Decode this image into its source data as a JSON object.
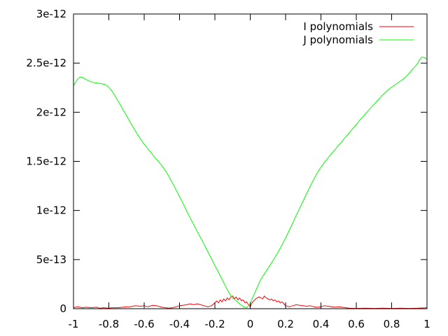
{
  "chart_data": {
    "type": "line",
    "xlim": [
      -1,
      1
    ],
    "ylim": [
      0,
      3e-12
    ],
    "x_ticks": [
      -1,
      -0.8,
      -0.6,
      -0.4,
      -0.2,
      0,
      0.2,
      0.4,
      0.6,
      0.8,
      1
    ],
    "x_tick_labels": [
      "-1",
      "-0.8",
      "-0.6",
      "-0.4",
      "-0.2",
      "0",
      "0.2",
      "0.4",
      "0.6",
      "0.8",
      "1"
    ],
    "y_ticks": [
      0,
      5e-13,
      1e-12,
      1.5e-12,
      2e-12,
      2.5e-12,
      3e-12
    ],
    "y_tick_labels": [
      "0",
      "5e-13",
      "1e-12",
      "1.5e-12",
      "2e-12",
      "2.5e-12",
      "3e-12"
    ],
    "grid": false,
    "legend_position": "top-right",
    "series": [
      {
        "name": "I polynomials",
        "color": "#ff0000",
        "x": [
          -1,
          -0.98,
          -0.95,
          -0.93,
          -0.9,
          -0.87,
          -0.85,
          -0.83,
          -0.8,
          -0.78,
          -0.75,
          -0.72,
          -0.7,
          -0.68,
          -0.65,
          -0.62,
          -0.6,
          -0.58,
          -0.55,
          -0.53,
          -0.5,
          -0.48,
          -0.46,
          -0.44,
          -0.42,
          -0.4,
          -0.38,
          -0.36,
          -0.34,
          -0.32,
          -0.3,
          -0.28,
          -0.26,
          -0.24,
          -0.22,
          -0.2,
          -0.19,
          -0.18,
          -0.17,
          -0.16,
          -0.15,
          -0.14,
          -0.13,
          -0.12,
          -0.11,
          -0.1,
          -0.09,
          -0.08,
          -0.07,
          -0.06,
          -0.05,
          -0.04,
          -0.03,
          -0.02,
          -0.01,
          0,
          0.01,
          0.02,
          0.03,
          0.04,
          0.05,
          0.06,
          0.07,
          0.08,
          0.09,
          0.1,
          0.11,
          0.12,
          0.13,
          0.14,
          0.15,
          0.16,
          0.17,
          0.18,
          0.19,
          0.2,
          0.22,
          0.24,
          0.26,
          0.28,
          0.3,
          0.32,
          0.34,
          0.36,
          0.38,
          0.4,
          0.42,
          0.44,
          0.46,
          0.48,
          0.5,
          0.52,
          0.54,
          0.56,
          0.6,
          0.65,
          0.7,
          0.75,
          0.8,
          0.85,
          0.9,
          0.95,
          1
        ],
        "y": [
          1e-14,
          2e-14,
          1e-14,
          1.5e-14,
          1e-14,
          1.5e-14,
          5e-15,
          1e-14,
          5e-15,
          1e-14,
          1e-14,
          1.5e-14,
          2e-14,
          2e-14,
          3e-14,
          2.5e-14,
          3e-14,
          2e-14,
          3.5e-14,
          3e-14,
          1.5e-14,
          1e-14,
          5e-15,
          1e-14,
          2e-14,
          3e-14,
          3.5e-14,
          4e-14,
          5e-14,
          4e-14,
          5e-14,
          4e-14,
          3e-14,
          2e-14,
          3e-14,
          6e-14,
          8e-14,
          6e-14,
          9e-14,
          7e-14,
          1e-13,
          8e-14,
          1.1e-13,
          9e-14,
          1.2e-13,
          1.3e-13,
          1e-13,
          1.2e-13,
          9e-14,
          1.1e-13,
          8e-14,
          9e-14,
          6e-14,
          7e-14,
          4e-14,
          2e-14,
          6e-14,
          8e-14,
          1e-13,
          1.1e-13,
          1.2e-13,
          1.1e-13,
          1e-13,
          1.3e-13,
          1.1e-13,
          1e-13,
          9e-14,
          1e-13,
          8e-14,
          9e-14,
          7e-14,
          8e-14,
          6e-14,
          7e-14,
          5e-14,
          3e-14,
          2e-14,
          3e-14,
          4e-14,
          3.5e-14,
          3e-14,
          2.5e-14,
          3e-14,
          2e-14,
          1.5e-14,
          2e-14,
          3e-14,
          2.5e-14,
          2e-14,
          1.5e-14,
          2e-14,
          1.5e-14,
          1e-14,
          5e-15,
          3e-15,
          5e-15,
          3e-15,
          5e-15,
          3e-15,
          5e-15,
          3e-15,
          5e-15,
          1e-14
        ]
      },
      {
        "name": "J polynomials",
        "color": "#00ff00",
        "x": [
          -1,
          -0.99,
          -0.98,
          -0.97,
          -0.96,
          -0.95,
          -0.94,
          -0.93,
          -0.92,
          -0.9,
          -0.88,
          -0.86,
          -0.84,
          -0.82,
          -0.8,
          -0.78,
          -0.76,
          -0.74,
          -0.72,
          -0.7,
          -0.68,
          -0.66,
          -0.64,
          -0.62,
          -0.6,
          -0.58,
          -0.56,
          -0.54,
          -0.52,
          -0.5,
          -0.48,
          -0.46,
          -0.44,
          -0.42,
          -0.4,
          -0.38,
          -0.36,
          -0.34,
          -0.32,
          -0.3,
          -0.28,
          -0.26,
          -0.24,
          -0.22,
          -0.2,
          -0.18,
          -0.16,
          -0.14,
          -0.12,
          -0.1,
          -0.08,
          -0.06,
          -0.04,
          -0.02,
          0,
          0.01,
          0.02,
          0.03,
          0.04,
          0.05,
          0.06,
          0.08,
          0.1,
          0.12,
          0.14,
          0.16,
          0.18,
          0.2,
          0.22,
          0.24,
          0.26,
          0.28,
          0.3,
          0.32,
          0.34,
          0.36,
          0.38,
          0.4,
          0.42,
          0.44,
          0.46,
          0.48,
          0.5,
          0.52,
          0.54,
          0.56,
          0.58,
          0.6,
          0.62,
          0.64,
          0.66,
          0.68,
          0.7,
          0.72,
          0.74,
          0.76,
          0.78,
          0.8,
          0.82,
          0.84,
          0.86,
          0.88,
          0.9,
          0.92,
          0.94,
          0.95,
          0.96,
          0.97,
          0.98,
          0.99,
          1
        ],
        "y": [
          2.27e-12,
          2.3e-12,
          2.33e-12,
          2.35e-12,
          2.36e-12,
          2.355e-12,
          2.345e-12,
          2.335e-12,
          2.325e-12,
          2.31e-12,
          2.3e-12,
          2.295e-12,
          2.29e-12,
          2.28e-12,
          2.255e-12,
          2.21e-12,
          2.15e-12,
          2.09e-12,
          2.025e-12,
          1.965e-12,
          1.9e-12,
          1.84e-12,
          1.78e-12,
          1.725e-12,
          1.675e-12,
          1.63e-12,
          1.585e-12,
          1.54e-12,
          1.5e-12,
          1.455e-12,
          1.405e-12,
          1.345e-12,
          1.28e-12,
          1.21e-12,
          1.14e-12,
          1.07e-12,
          9.95e-13,
          9.25e-13,
          8.55e-13,
          7.85e-13,
          7.2e-13,
          6.5e-13,
          5.8e-13,
          5.1e-13,
          4.4e-13,
          3.7e-13,
          3e-13,
          2.3e-13,
          1.6e-13,
          1.1e-13,
          8e-14,
          5e-14,
          2e-14,
          1e-14,
          5e-14,
          1e-13,
          1.4e-13,
          1.8e-13,
          2.2e-13,
          2.6e-13,
          3e-13,
          3.55e-13,
          4.1e-13,
          4.65e-13,
          5.25e-13,
          5.85e-13,
          6.5e-13,
          7.2e-13,
          7.95e-13,
          8.7e-13,
          9.5e-13,
          1.025e-12,
          1.1e-12,
          1.175e-12,
          1.25e-12,
          1.32e-12,
          1.385e-12,
          1.44e-12,
          1.49e-12,
          1.535e-12,
          1.58e-12,
          1.62e-12,
          1.665e-12,
          1.705e-12,
          1.75e-12,
          1.79e-12,
          1.835e-12,
          1.875e-12,
          1.92e-12,
          1.96e-12,
          2e-12,
          2.04e-12,
          2.08e-12,
          2.12e-12,
          2.16e-12,
          2.195e-12,
          2.23e-12,
          2.255e-12,
          2.28e-12,
          2.305e-12,
          2.33e-12,
          2.36e-12,
          2.4e-12,
          2.44e-12,
          2.48e-12,
          2.51e-12,
          2.54e-12,
          2.56e-12,
          2.56e-12,
          2.55e-12,
          2.54e-12
        ]
      }
    ]
  }
}
